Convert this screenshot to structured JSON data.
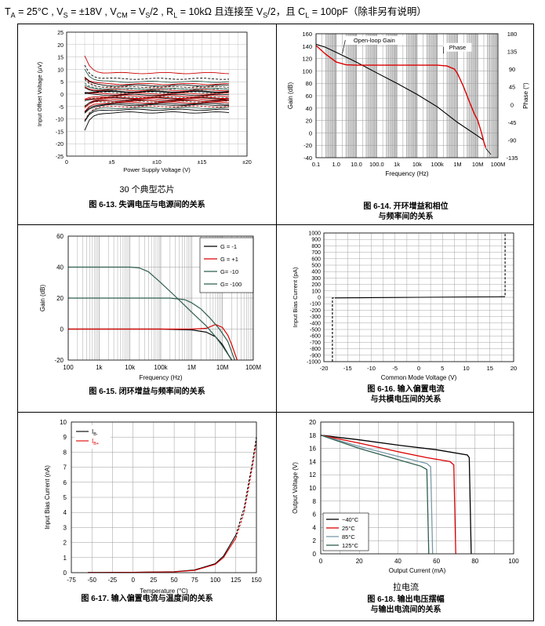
{
  "conditions": {
    "ta": "T",
    "ta_sub": "A",
    "ta_val": " = 25°C , V",
    "vs_sub": "S",
    "vs_val": " = ±18V , V",
    "vcm_sub": "CM",
    "vcm_val": " = V",
    "vcm_sub2": "S",
    "rl_val": "/2 , R",
    "rl_sub": "L",
    "rl_rest": " = 10kΩ 且连接至 V",
    "vs2_sub": "S",
    "cl_val": "/2，且 C",
    "cl_sub": "L",
    "cl_rest": " = 100pF（除非另有说明）"
  },
  "captions": {
    "c613": "图 6-13. 失调电压与电源间的关系",
    "c614_1": "图 6-14. 开环增益和相位",
    "c614_2": "与频率间的关系",
    "c615": "图 6-15. 闭环增益与频率间的关系",
    "c616_1": "图 6-16. 输入偏置电流",
    "c616_2": "与共模电压间的关系",
    "c617": "图 6-17. 输入偏置电流与温度间的关系",
    "c618_1": "图 6-18. 输出电压摆幅",
    "c618_2": "与输出电流间的关系"
  },
  "notes": {
    "n613": "30 个典型芯片",
    "n618": "拉电流"
  },
  "chart_data": [
    {
      "id": "fig613",
      "type": "line",
      "title": "失调电压与电源间的关系",
      "xlabel": "Power Supply Voltage (V)",
      "ylabel": "Input Offset Voltage (µV)",
      "xlim": [
        0,
        20
      ],
      "ylim": [
        -25,
        25
      ],
      "xticks": [
        {
          "v": 0,
          "label": "0"
        },
        {
          "v": 5,
          "label": "±5"
        },
        {
          "v": 10,
          "label": "±10"
        },
        {
          "v": 15,
          "label": "±15"
        },
        {
          "v": 20,
          "label": "±20"
        }
      ],
      "yticks": [
        -25,
        -20,
        -15,
        -10,
        -5,
        0,
        5,
        10,
        15,
        20,
        25
      ],
      "x_start": 2,
      "x_end": 18,
      "series_offsets": [
        8.5,
        6.2,
        5.0,
        4.1,
        3.5,
        2.8,
        2.2,
        1.6,
        1.1,
        0.6,
        0.2,
        -0.3,
        -0.8,
        -1.2,
        -1.7,
        -2.1,
        -2.6,
        -3.0,
        -3.4,
        -3.9,
        -4.4,
        -5.0,
        -5.6,
        -6.3,
        -7.4,
        3.0,
        -1.5,
        0.9,
        -2.8,
        1.9
      ],
      "series_colors": [
        "#cc0000",
        "#000000",
        "#2f5f4f",
        "#cc0000",
        "#000000",
        "#cc0000",
        "#2f5f4f",
        "#cc0000",
        "#000000",
        "#2f5f4f",
        "#cc0000",
        "#000000",
        "#cc0000",
        "#2f5f4f",
        "#000000",
        "#cc0000",
        "#000000",
        "#2f5f4f",
        "#cc0000",
        "#000000",
        "#000000",
        "#cc0000",
        "#2f5f4f",
        "#000000",
        "#000000",
        "#2f5f4f",
        "#cc0000",
        "#000000",
        "#cc0000",
        "#2f5f4f"
      ]
    },
    {
      "id": "fig614",
      "type": "line",
      "title": "开环增益和相位与频率间的关系",
      "xlabel": "Frequency (Hz)",
      "ylabel": "Gain (dB)",
      "ylabel_right": "Phase (°)",
      "xscale": "log",
      "xlim": [
        0.1,
        100000000
      ],
      "ylim": [
        -40,
        160
      ],
      "ylim_right": [
        -135,
        180
      ],
      "xticklabels": [
        "0.1",
        "1.0",
        "10.0",
        "100.0",
        "1k",
        "10k",
        "100k",
        "1M",
        "10M",
        "100M"
      ],
      "yticks": [
        -40,
        -20,
        0,
        20,
        40,
        60,
        80,
        100,
        120,
        140,
        160
      ],
      "yticks_right": [
        -135,
        -90,
        -45,
        0,
        45,
        90,
        135,
        180
      ],
      "annotations": [
        {
          "text": "Open-loop Gain"
        },
        {
          "text": "Phase"
        }
      ],
      "series": [
        {
          "name": "Open-loop Gain",
          "color": "#000000",
          "points": [
            [
              0.1,
              143
            ],
            [
              0.3,
              138
            ],
            [
              1,
              130
            ],
            [
              10,
              114
            ],
            [
              100,
              97
            ],
            [
              1000,
              80
            ],
            [
              10000,
              62
            ],
            [
              100000,
              42
            ],
            [
              1000000,
              17
            ],
            [
              10000000,
              -5
            ],
            [
              20000000,
              -12
            ]
          ]
        },
        {
          "name": "Phase",
          "color": "#dd0000",
          "points": [
            [
              0.1,
              150
            ],
            [
              0.3,
              128
            ],
            [
              1,
              108
            ],
            [
              3,
              101
            ],
            [
              10,
              100
            ],
            [
              100,
              100
            ],
            [
              1000,
              100
            ],
            [
              100000,
              100
            ],
            [
              300000,
              98
            ],
            [
              700000,
              90
            ],
            [
              1000000,
              79
            ],
            [
              2000000,
              45
            ],
            [
              4000000,
              5
            ],
            [
              7000000,
              -25
            ],
            [
              10000000,
              -40
            ],
            [
              15000000,
              -70
            ],
            [
              20000000,
              -95
            ],
            [
              25000000,
              -110
            ]
          ]
        }
      ]
    },
    {
      "id": "fig615",
      "type": "line",
      "title": "闭环增益与频率间的关系",
      "xlabel": "Frequency (Hz)",
      "ylabel": "Gain (dB)",
      "xscale": "log",
      "xlim": [
        100,
        100000000
      ],
      "ylim": [
        -20,
        60
      ],
      "xticklabels": [
        "100",
        "1k",
        "10k",
        "100k",
        "1M",
        "10M",
        "100M"
      ],
      "yticks": [
        -20,
        0,
        20,
        40,
        60
      ],
      "series": [
        {
          "name": "G = -1",
          "color": "#000000",
          "points": [
            [
              100,
              0
            ],
            [
              100000,
              0
            ],
            [
              1000000,
              -0.5
            ],
            [
              3000000,
              -2
            ],
            [
              6000000,
              -5
            ],
            [
              10000000,
              -10
            ],
            [
              15000000,
              -16
            ],
            [
              20000000,
              -20
            ]
          ]
        },
        {
          "name": "G = +1",
          "color": "#dd0000",
          "points": [
            [
              100,
              0
            ],
            [
              1000000,
              0
            ],
            [
              3000000,
              0.5
            ],
            [
              6000000,
              3
            ],
            [
              10000000,
              1
            ],
            [
              15000000,
              -4
            ],
            [
              20000000,
              -10
            ],
            [
              30000000,
              -20
            ]
          ]
        },
        {
          "name": "G= -10",
          "color": "#2f5f4f",
          "points": [
            [
              100,
              20
            ],
            [
              200000,
              20
            ],
            [
              600000,
              19
            ],
            [
              1000000,
              17
            ],
            [
              2000000,
              13
            ],
            [
              4000000,
              7
            ],
            [
              8000000,
              0
            ],
            [
              15000000,
              -8
            ],
            [
              25000000,
              -20
            ]
          ]
        },
        {
          "name": "G= -100",
          "color": "#2f5f4f",
          "points": [
            [
              100,
              40
            ],
            [
              10000,
              40
            ],
            [
              20000,
              39.5
            ],
            [
              40000,
              37
            ],
            [
              100000,
              30
            ],
            [
              300000,
              21
            ],
            [
              1000000,
              11
            ],
            [
              3000000,
              2
            ],
            [
              6000000,
              -5
            ],
            [
              10000000,
              -11
            ],
            [
              20000000,
              -20
            ]
          ]
        }
      ]
    },
    {
      "id": "fig616",
      "type": "line",
      "title": "输入偏置电流与共模电压间的关系",
      "xlabel": "Common Mode Voltage (V)",
      "ylabel": "Input Bias Current (pA)",
      "xlim": [
        -20,
        20
      ],
      "ylim": [
        -1000,
        1000
      ],
      "xticks": [
        -20,
        -15,
        -10,
        -5,
        0,
        5,
        10,
        15,
        20
      ],
      "yticks": [
        -1000,
        -900,
        -800,
        -700,
        -600,
        -500,
        -400,
        -300,
        -200,
        -100,
        0,
        100,
        200,
        300,
        400,
        500,
        600,
        700,
        800,
        900,
        1000
      ],
      "series": [
        {
          "name": "Ib",
          "color": "#000000",
          "points": [
            [
              -17.7,
              -10
            ],
            [
              0,
              0
            ],
            [
              17.7,
              10
            ]
          ]
        },
        {
          "name": "Ib edge low",
          "color": "#000000",
          "dashed": true,
          "points": [
            [
              -18.2,
              -1000
            ],
            [
              -18.2,
              -10
            ],
            [
              -17.7,
              -10
            ]
          ]
        },
        {
          "name": "Ib edge high",
          "color": "#000000",
          "dashed": true,
          "points": [
            [
              17.7,
              10
            ],
            [
              18.2,
              10
            ],
            [
              18.2,
              1000
            ]
          ]
        }
      ]
    },
    {
      "id": "fig617",
      "type": "line",
      "title": "输入偏置电流与温度间的关系",
      "xlabel": "Temperature (°C)",
      "ylabel": "Input Bias Current (nA)",
      "xlim": [
        -75,
        150
      ],
      "ylim": [
        0,
        10
      ],
      "xticks": [
        -75,
        -50,
        -25,
        0,
        25,
        50,
        75,
        100,
        125,
        150
      ],
      "yticks": [
        0,
        1,
        2,
        3,
        4,
        5,
        6,
        7,
        8,
        9,
        10
      ],
      "legend": [
        {
          "label": "I",
          "sub": "B-",
          "color": "#000000"
        },
        {
          "label": "I",
          "sub": "B+",
          "color": "#dd0000"
        }
      ],
      "series": [
        {
          "name": "IB-",
          "color": "#000000",
          "points": [
            [
              -55,
              0.01
            ],
            [
              0,
              0.02
            ],
            [
              50,
              0.06
            ],
            [
              75,
              0.18
            ],
            [
              100,
              0.6
            ],
            [
              110,
              1.1
            ],
            [
              125,
              2.5
            ]
          ]
        },
        {
          "name": "IB- extrapolated",
          "color": "#000000",
          "dashed": true,
          "points": [
            [
              125,
              2.5
            ],
            [
              135,
              4.3
            ],
            [
              145,
              7.3
            ],
            [
              150,
              9.0
            ]
          ]
        },
        {
          "name": "IB+",
          "color": "#dd0000",
          "points": [
            [
              -55,
              0.01
            ],
            [
              0,
              0.02
            ],
            [
              50,
              0.05
            ],
            [
              75,
              0.15
            ],
            [
              100,
              0.55
            ],
            [
              110,
              1.0
            ],
            [
              125,
              2.3
            ]
          ]
        },
        {
          "name": "IB+ extrapolated",
          "color": "#dd0000",
          "dashed": true,
          "points": [
            [
              125,
              2.3
            ],
            [
              135,
              4.0
            ],
            [
              145,
              7.0
            ],
            [
              150,
              8.7
            ]
          ]
        }
      ]
    },
    {
      "id": "fig618",
      "type": "line",
      "title": "输出电压摆幅与输出电流间的关系",
      "xlabel": "Output Current (mA)",
      "ylabel": "Output Voltage (V)",
      "xlim": [
        0,
        100
      ],
      "ylim": [
        0,
        20
      ],
      "xticks": [
        0,
        20,
        40,
        60,
        80,
        100
      ],
      "yticks": [
        0,
        2,
        4,
        6,
        8,
        10,
        12,
        14,
        16,
        18,
        20
      ],
      "series": [
        {
          "name": "−40°C",
          "color": "#000000",
          "points": [
            [
              0,
              18
            ],
            [
              20,
              17.3
            ],
            [
              40,
              16.5
            ],
            [
              60,
              15.8
            ],
            [
              76,
              15.0
            ],
            [
              77,
              14.6
            ],
            [
              78,
              0
            ]
          ]
        },
        {
          "name": "25°C",
          "color": "#dd0000",
          "points": [
            [
              0,
              18
            ],
            [
              20,
              16.8
            ],
            [
              40,
              15.5
            ],
            [
              55,
              14.6
            ],
            [
              67,
              14.0
            ],
            [
              69,
              13.5
            ],
            [
              70,
              0
            ]
          ]
        },
        {
          "name": "85°C",
          "color": "#7a9aaa",
          "points": [
            [
              0,
              18
            ],
            [
              20,
              16.3
            ],
            [
              40,
              14.8
            ],
            [
              55,
              13.7
            ],
            [
              57,
              13.2
            ],
            [
              58,
              0
            ]
          ]
        },
        {
          "name": "125°C",
          "color": "#2f5f4f",
          "points": [
            [
              0,
              18
            ],
            [
              20,
              16.0
            ],
            [
              40,
              14.3
            ],
            [
              52,
              13.3
            ],
            [
              55,
              12.8
            ],
            [
              56,
              0
            ]
          ]
        }
      ]
    }
  ]
}
